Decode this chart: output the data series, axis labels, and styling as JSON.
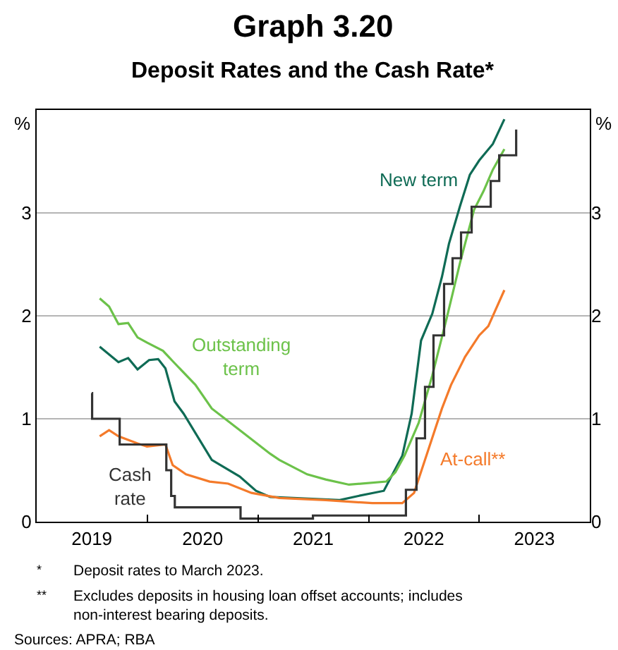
{
  "chart_data": {
    "type": "line",
    "title": "Graph 3.20",
    "subtitle": "Deposit Rates and the Cash Rate*",
    "ylabel": "%",
    "y2label": "%",
    "xlim": [
      "2019-01-01",
      "2024-01-01"
    ],
    "xticks": [
      {
        "value": "2019-07-02",
        "label": "2019"
      },
      {
        "value": "2020-07-02",
        "label": "2020"
      },
      {
        "value": "2021-07-02",
        "label": "2021"
      },
      {
        "value": "2022-07-02",
        "label": "2022"
      },
      {
        "value": "2023-07-02",
        "label": "2023"
      },
      {
        "value": "2020-01-01",
        "label": null
      },
      {
        "value": "2021-01-01",
        "label": null
      },
      {
        "value": "2022-01-01",
        "label": null
      },
      {
        "value": "2023-01-01",
        "label": null
      }
    ],
    "ylim": [
      0,
      4
    ],
    "yticks": [
      0,
      1,
      2,
      3
    ],
    "y2lim": [
      0,
      4
    ],
    "y2ticks": [
      0,
      1,
      2,
      3
    ],
    "grid": "y",
    "legend": false,
    "marker": "none",
    "line_style": "solid",
    "series": [
      {
        "name": "New term",
        "color": "#0f6b55",
        "x": [
          "2019-07-28",
          "2019-09-28",
          "2019-10-30",
          "2019-11-30",
          "2020-01-07",
          "2020-02-06",
          "2020-03-01",
          "2020-03-31",
          "2020-04-30",
          "2020-08-01",
          "2020-11-01",
          "2020-12-25",
          "2021-02-10",
          "2021-09-27",
          "2021-11-28",
          "2022-02-20",
          "2022-04-22",
          "2022-05-23",
          "2022-06-23",
          "2022-07-30",
          "2022-08-31",
          "2022-09-23",
          "2022-10-30",
          "2022-12-01",
          "2023-01-01",
          "2023-02-15",
          "2023-03-25"
        ],
        "values": [
          1.7,
          1.55,
          1.59,
          1.48,
          1.57,
          1.58,
          1.49,
          1.17,
          1.05,
          0.6,
          0.44,
          0.3,
          0.24,
          0.21,
          0.25,
          0.3,
          0.64,
          1.05,
          1.76,
          2.02,
          2.38,
          2.7,
          3.07,
          3.37,
          3.51,
          3.67,
          3.91
        ]
      },
      {
        "name": "Outstanding term",
        "color": "#6cc24a",
        "x": [
          "2019-07-28",
          "2019-08-28",
          "2019-09-28",
          "2019-10-30",
          "2019-11-30",
          "2019-12-31",
          "2020-02-22",
          "2020-03-25",
          "2020-06-08",
          "2020-08-01",
          "2020-11-10",
          "2021-02-10",
          "2021-03-12",
          "2021-06-12",
          "2021-08-12",
          "2021-10-28",
          "2022-02-28",
          "2022-03-30",
          "2022-04-29",
          "2022-06-15",
          "2022-07-30",
          "2022-09-15",
          "2022-10-30",
          "2022-12-15",
          "2023-01-15",
          "2023-02-15",
          "2023-03-25"
        ],
        "values": [
          2.17,
          2.09,
          1.92,
          1.93,
          1.79,
          1.74,
          1.66,
          1.56,
          1.33,
          1.1,
          0.87,
          0.66,
          0.6,
          0.46,
          0.41,
          0.36,
          0.39,
          0.48,
          0.64,
          0.96,
          1.42,
          1.97,
          2.52,
          3.03,
          3.21,
          3.42,
          3.62
        ]
      },
      {
        "name": "At-call**",
        "color": "#f47a2a",
        "x": [
          "2019-07-28",
          "2019-08-28",
          "2019-09-28",
          "2019-11-30",
          "2019-12-31",
          "2020-03-01",
          "2020-03-25",
          "2020-05-08",
          "2020-07-25",
          "2020-09-24",
          "2020-12-10",
          "2021-03-12",
          "2021-08-12",
          "2022-01-13",
          "2022-04-22",
          "2022-05-31",
          "2022-07-16",
          "2022-08-31",
          "2022-09-30",
          "2022-11-15",
          "2023-01-01",
          "2023-01-31",
          "2023-03-25"
        ],
        "values": [
          0.83,
          0.89,
          0.83,
          0.76,
          0.73,
          0.75,
          0.55,
          0.46,
          0.39,
          0.37,
          0.28,
          0.23,
          0.21,
          0.18,
          0.18,
          0.28,
          0.69,
          1.1,
          1.33,
          1.6,
          1.81,
          1.9,
          2.25
        ]
      },
      {
        "name": "Cash rate",
        "color": "#333333",
        "type": "step",
        "x": [
          "2019-07-02",
          "2019-07-03",
          "2019-10-02",
          "2020-03-04",
          "2020-03-20",
          "2020-04-01",
          "2020-11-04",
          "2021-07-01",
          "2022-05-04",
          "2022-06-08",
          "2022-07-06",
          "2022-08-03",
          "2022-09-07",
          "2022-10-05",
          "2022-11-02",
          "2022-12-07",
          "2023-02-08",
          "2023-03-08",
          "2023-05-03"
        ],
        "values": [
          1.25,
          1.0,
          0.75,
          0.5,
          0.25,
          0.14,
          0.03,
          0.06,
          0.31,
          0.81,
          1.31,
          1.81,
          2.31,
          2.56,
          2.81,
          3.06,
          3.31,
          3.56,
          3.81
        ]
      }
    ],
    "annotations": [
      "*\tDeposit rates to March 2023.",
      "**\tExcludes deposits in housing loan offset accounts; includes non-interest bearing deposits.",
      "Sources: APRA; RBA"
    ]
  }
}
